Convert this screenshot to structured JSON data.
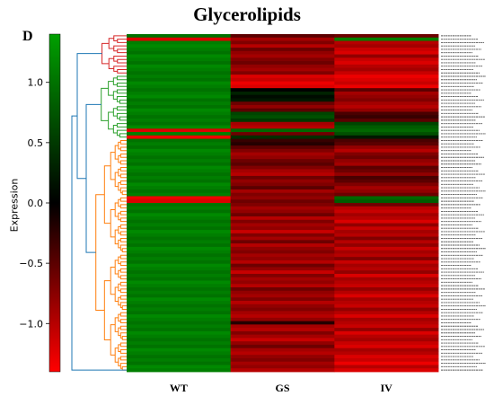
{
  "panel_letter": "D",
  "chart_data": {
    "type": "heatmap",
    "title": "Glycerolipids",
    "xlabel": "",
    "ylabel": "",
    "colorbar": {
      "label": "Expression",
      "range": [
        -1.4,
        1.4
      ],
      "ticks": [
        1.0,
        0.5,
        0.0,
        -0.5,
        -1.0
      ],
      "tick_labels": [
        "1.0",
        "0.5",
        "0.0",
        "−0.5",
        "−1.0"
      ],
      "colors": {
        "high": "#00a000",
        "mid": "#000000",
        "low": "#ff0000"
      }
    },
    "columns": [
      "WT",
      "GS",
      "IV"
    ],
    "dendrogram": {
      "position": "left",
      "cluster_colors": [
        "#d62728",
        "#2ca02c",
        "#ff7f0e"
      ],
      "root_color": "#1f77b4",
      "cluster_sizes": [
        12,
        19,
        69
      ]
    },
    "row_labels_legible": false,
    "values": [
      [
        1.0,
        -0.5,
        -0.6
      ],
      [
        -1.2,
        -0.9,
        1.1
      ],
      [
        1.1,
        -0.7,
        -1.0
      ],
      [
        1.2,
        -1.0,
        -0.9
      ],
      [
        1.1,
        -0.6,
        -1.1
      ],
      [
        1.0,
        -0.8,
        -1.2
      ],
      [
        1.2,
        -0.9,
        -0.8
      ],
      [
        1.1,
        -0.7,
        -1.1
      ],
      [
        1.0,
        -0.6,
        -1.2
      ],
      [
        1.2,
        -0.8,
        -1.0
      ],
      [
        1.1,
        -0.9,
        -0.9
      ],
      [
        1.0,
        -0.7,
        -1.1
      ],
      [
        1.1,
        -1.2,
        -1.3
      ],
      [
        1.0,
        -1.1,
        -1.2
      ],
      [
        1.2,
        -1.3,
        -1.1
      ],
      [
        1.1,
        -1.2,
        -1.3
      ],
      [
        1.0,
        0.0,
        -0.5
      ],
      [
        1.1,
        0.3,
        -0.9
      ],
      [
        1.2,
        0.1,
        -0.8
      ],
      [
        1.0,
        0.2,
        -0.7
      ],
      [
        1.1,
        -0.6,
        -0.9
      ],
      [
        1.0,
        -0.8,
        -1.0
      ],
      [
        1.2,
        -0.5,
        -0.8
      ],
      [
        1.1,
        0.6,
        -0.4
      ],
      [
        1.0,
        0.7,
        -0.3
      ],
      [
        1.1,
        0.5,
        -0.5
      ],
      [
        1.0,
        -0.9,
        0.6
      ],
      [
        1.2,
        -1.0,
        0.8
      ],
      [
        -1.2,
        0.9,
        0.9
      ],
      [
        1.1,
        -0.6,
        0.7
      ],
      [
        -1.3,
        0.4,
        0.2
      ],
      [
        1.0,
        -0.3,
        -0.4
      ],
      [
        1.1,
        -0.2,
        -0.5
      ],
      [
        1.0,
        -0.5,
        -0.8
      ],
      [
        1.2,
        -0.7,
        -1.0
      ],
      [
        1.1,
        -0.9,
        -0.7
      ],
      [
        1.0,
        -0.8,
        -0.6
      ],
      [
        1.1,
        -0.6,
        -0.8
      ],
      [
        1.0,
        -0.5,
        -0.9
      ],
      [
        1.2,
        -0.7,
        -0.5
      ],
      [
        1.1,
        -0.9,
        -0.6
      ],
      [
        1.0,
        -1.0,
        -0.8
      ],
      [
        1.1,
        -0.6,
        -0.4
      ],
      [
        1.0,
        -0.8,
        -0.5
      ],
      [
        1.2,
        -0.7,
        -0.7
      ],
      [
        1.1,
        -0.5,
        -0.9
      ],
      [
        1.0,
        -0.9,
        -0.8
      ],
      [
        1.1,
        -0.7,
        -0.6
      ],
      [
        -1.3,
        -0.8,
        0.9
      ],
      [
        -1.2,
        -0.6,
        0.8
      ],
      [
        1.0,
        -0.7,
        -0.6
      ],
      [
        1.1,
        -0.9,
        -1.0
      ],
      [
        1.0,
        -0.8,
        -1.1
      ],
      [
        1.2,
        -0.6,
        -0.9
      ],
      [
        1.1,
        -1.0,
        -1.0
      ],
      [
        1.0,
        -0.7,
        -1.2
      ],
      [
        1.1,
        -0.9,
        -0.8
      ],
      [
        1.0,
        -0.8,
        -1.1
      ],
      [
        1.2,
        -1.1,
        -0.9
      ],
      [
        1.1,
        -0.7,
        -1.0
      ],
      [
        1.0,
        -0.9,
        -0.7
      ],
      [
        1.1,
        -0.6,
        -1.0
      ],
      [
        1.0,
        -1.0,
        -0.8
      ],
      [
        1.2,
        -0.8,
        -1.1
      ],
      [
        1.1,
        -0.7,
        -0.9
      ],
      [
        1.0,
        -0.9,
        -1.0
      ],
      [
        1.1,
        -0.8,
        -0.7
      ],
      [
        1.0,
        -1.0,
        -1.1
      ],
      [
        1.2,
        -0.6,
        -0.9
      ],
      [
        1.1,
        -0.8,
        -1.0
      ],
      [
        1.0,
        -1.1,
        -0.8
      ],
      [
        1.1,
        -0.7,
        -1.2
      ],
      [
        1.0,
        -0.9,
        -0.9
      ],
      [
        1.2,
        -0.8,
        -1.0
      ],
      [
        1.1,
        -1.0,
        -1.1
      ],
      [
        1.0,
        -0.6,
        -0.8
      ],
      [
        1.1,
        -0.8,
        -1.0
      ],
      [
        1.0,
        -0.9,
        -1.2
      ],
      [
        1.2,
        -0.7,
        -0.9
      ],
      [
        1.1,
        -1.0,
        -1.0
      ],
      [
        1.0,
        -0.8,
        -1.1
      ],
      [
        1.1,
        -0.7,
        -0.8
      ],
      [
        1.0,
        -0.9,
        -1.0
      ],
      [
        1.2,
        -1.0,
        -1.2
      ],
      [
        1.1,
        -0.8,
        -0.9
      ],
      [
        1.0,
        -0.2,
        -1.0
      ],
      [
        1.1,
        -0.9,
        -1.1
      ],
      [
        1.0,
        -1.0,
        -0.8
      ],
      [
        1.2,
        -0.7,
        -1.2
      ],
      [
        1.1,
        -0.9,
        -1.0
      ],
      [
        1.0,
        -1.1,
        -0.9
      ],
      [
        1.1,
        -0.8,
        -1.1
      ],
      [
        1.0,
        -0.6,
        -1.2
      ],
      [
        1.2,
        -0.9,
        -0.9
      ],
      [
        1.1,
        -1.0,
        -1.0
      ],
      [
        1.0,
        -0.8,
        -1.2
      ],
      [
        1.1,
        -0.7,
        -1.1
      ],
      [
        1.0,
        -0.9,
        -1.3
      ],
      [
        1.2,
        -0.8,
        -1.0
      ],
      [
        1.1,
        -1.0,
        -1.2
      ]
    ]
  }
}
